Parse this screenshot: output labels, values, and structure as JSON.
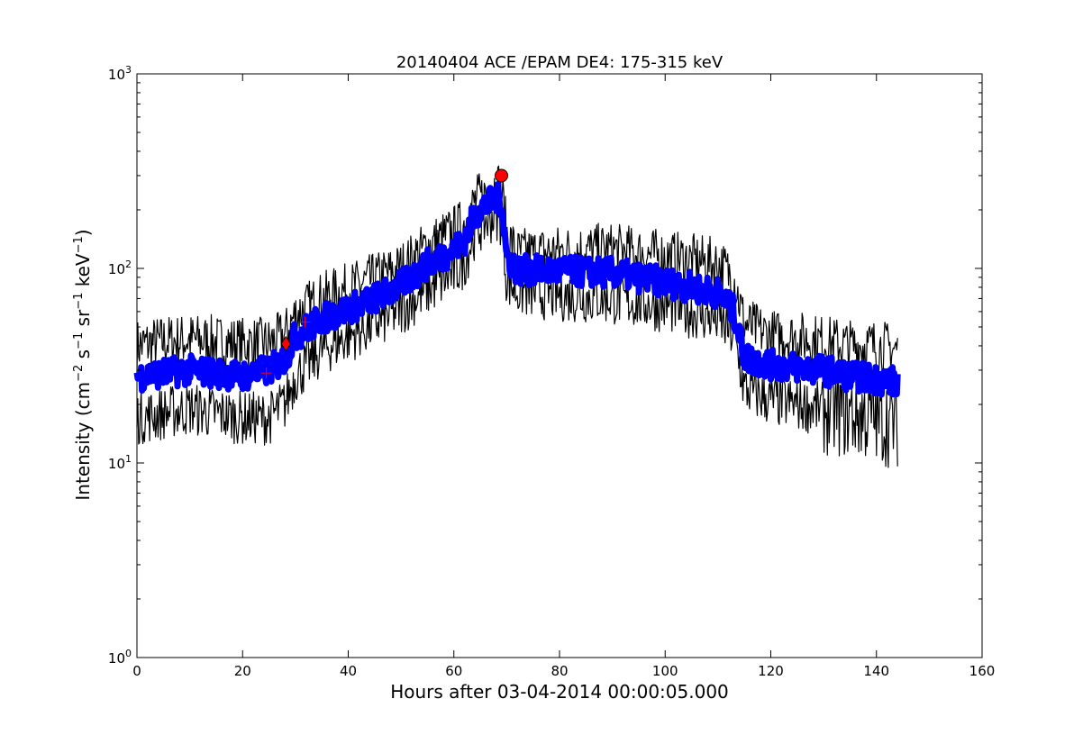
{
  "chart_data": {
    "type": "line",
    "title": "20140404 ACE /EPAM DE4: 175-315 keV",
    "xlabel": "Hours after 03-04-2014 00:00:05.000",
    "ylabel_parts": {
      "prefix": "Intensity (cm",
      "exp1": "−2",
      "s": " s",
      "exp2": "−1",
      "sr": " sr",
      "exp3": "−1",
      "kev": " keV",
      "exp4": "−1",
      "suffix": ")"
    },
    "xlim": [
      0,
      160
    ],
    "ylim": [
      1,
      1000
    ],
    "yscale": "log",
    "grid": false,
    "x_ticks": [
      "0",
      "20",
      "40",
      "60",
      "80",
      "100",
      "120",
      "140",
      "160"
    ],
    "y_ticks": [
      {
        "base": "10",
        "exp": "0"
      },
      {
        "base": "10",
        "exp": "1"
      },
      {
        "base": "10",
        "exp": "2"
      },
      {
        "base": "10",
        "exp": "3"
      }
    ],
    "series": [
      {
        "role": "upper-bound",
        "color": "#000000",
        "x": [
          0,
          5,
          10,
          15,
          20,
          25,
          28,
          30,
          35,
          40,
          45,
          50,
          55,
          60,
          62,
          64,
          66,
          68,
          69,
          70,
          72,
          80,
          90,
          100,
          105,
          110,
          113,
          115,
          120,
          125,
          130,
          135,
          140,
          144
        ],
        "values": [
          40,
          42,
          43,
          42,
          41,
          41,
          45,
          58,
          70,
          78,
          88,
          100,
          130,
          155,
          170,
          220,
          240,
          270,
          260,
          150,
          118,
          122,
          125,
          115,
          110,
          105,
          90,
          52,
          45,
          44,
          42,
          40,
          40,
          38
        ]
      },
      {
        "role": "center",
        "color": "#0000ff",
        "x": [
          0,
          5,
          10,
          15,
          20,
          25,
          28,
          30,
          35,
          40,
          45,
          50,
          55,
          60,
          62,
          64,
          66,
          68,
          69,
          70,
          72,
          80,
          90,
          100,
          105,
          110,
          113,
          115,
          120,
          125,
          130,
          135,
          140,
          144
        ],
        "values": [
          28,
          29,
          30,
          29,
          28,
          30,
          34,
          45,
          55,
          62,
          70,
          82,
          105,
          125,
          140,
          190,
          210,
          230,
          220,
          115,
          98,
          97,
          95,
          85,
          80,
          75,
          60,
          35,
          32,
          31,
          30,
          28,
          27,
          26
        ]
      },
      {
        "role": "lower-bound",
        "color": "#000000",
        "x": [
          0,
          5,
          10,
          15,
          20,
          25,
          28,
          30,
          35,
          40,
          45,
          50,
          55,
          60,
          62,
          64,
          66,
          68,
          69,
          70,
          72,
          80,
          90,
          100,
          105,
          110,
          113,
          115,
          120,
          125,
          130,
          135,
          140,
          144
        ],
        "values": [
          17,
          18,
          19,
          18,
          17,
          17,
          20,
          28,
          38,
          45,
          52,
          62,
          78,
          95,
          108,
          155,
          175,
          190,
          180,
          88,
          77,
          73,
          70,
          64,
          60,
          55,
          45,
          24,
          21,
          20,
          19,
          18,
          17,
          16
        ]
      }
    ],
    "markers": [
      {
        "shape": "plus",
        "x": 24.5,
        "y": 29,
        "color": "#ff0000"
      },
      {
        "shape": "diamond",
        "x": 28.2,
        "y": 41,
        "color": "#ff0000"
      },
      {
        "shape": "plus",
        "x": 31.8,
        "y": 53,
        "color": "#ff0000"
      },
      {
        "shape": "circle",
        "x": 69,
        "y": 300,
        "color": "#ff0000"
      }
    ]
  }
}
